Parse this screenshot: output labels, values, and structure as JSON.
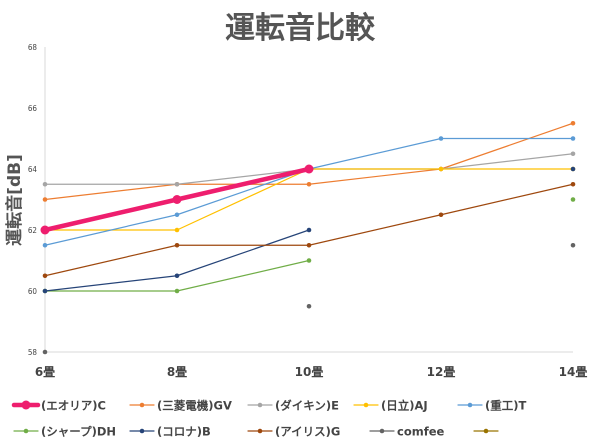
{
  "chart_data": {
    "type": "line",
    "title": "運転音比較",
    "xlabel": "",
    "ylabel": "運転音[dB]",
    "categories": [
      "6畳",
      "8畳",
      "10畳",
      "12畳",
      "14畳"
    ],
    "yticks": [
      "58",
      "60",
      "62",
      "64",
      "66",
      "68"
    ],
    "ylim": [
      58,
      68
    ],
    "grid": false,
    "legend_position": "bottom",
    "series": [
      {
        "name": "(エオリア)C",
        "color": "#ee1e6e",
        "emphasis": true,
        "values": [
          62,
          63,
          64,
          null,
          null
        ]
      },
      {
        "name": "(三菱電機)GV",
        "color": "#ed7d31",
        "values": [
          63,
          63.5,
          63.5,
          64,
          65.5
        ]
      },
      {
        "name": "(ダイキン)E",
        "color": "#a5a5a5",
        "values": [
          63.5,
          63.5,
          64,
          64,
          64.5
        ]
      },
      {
        "name": "(日立)AJ",
        "color": "#ffc000",
        "values": [
          62,
          62,
          64,
          64,
          64
        ]
      },
      {
        "name": "(重工)T",
        "color": "#5b9bd5",
        "values": [
          61.5,
          62.5,
          64,
          65,
          65
        ]
      },
      {
        "name": "(シャープ)DH",
        "color": "#70ad47",
        "values": [
          60,
          60,
          61,
          null,
          63
        ]
      },
      {
        "name": "(コロナ)B",
        "color": "#264478",
        "values": [
          60,
          60.5,
          62,
          null,
          64
        ]
      },
      {
        "name": "(アイリス)G",
        "color": "#9e480e",
        "values": [
          60.5,
          61.5,
          61.5,
          62.5,
          63.5
        ]
      },
      {
        "name": "comfee",
        "color": "#636363",
        "values": [
          58,
          null,
          59.5,
          null,
          61.5
        ]
      },
      {
        "name": "",
        "color": "#997300",
        "values": [
          null,
          null,
          null,
          null,
          null
        ]
      }
    ]
  }
}
